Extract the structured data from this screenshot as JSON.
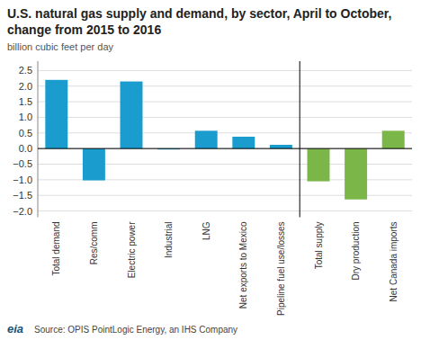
{
  "chart_data": {
    "type": "bar",
    "title": "U.S. natural gas supply and demand, by sector, April to October, change from 2015 to 2016",
    "subtitle": "billion cubic feet per day",
    "source": "Source: OPIS PointLogic Energy, an IHS Company",
    "annotations": [
      "eia"
    ],
    "categories": [
      "Total demand",
      "Res/comm",
      "Electric power",
      "Industrial",
      "LNG",
      "Net exports to Mexico",
      "Pipeline fuel use/losses",
      "Total supply",
      "Dry production",
      "Net Canada imports"
    ],
    "values": [
      2.2,
      -1.02,
      2.15,
      -0.03,
      0.57,
      0.38,
      0.12,
      -1.05,
      -1.63,
      0.57
    ],
    "colors": [
      "#1a9dce",
      "#1a9dce",
      "#1a9dce",
      "#1a9dce",
      "#1a9dce",
      "#1a9dce",
      "#1a9dce",
      "#7ab648",
      "#7ab648",
      "#7ab648"
    ],
    "ylim": [
      -2.2,
      2.8
    ],
    "yticks": [
      {
        "value": -2.0,
        "label": "−2.0"
      },
      {
        "value": -1.5,
        "label": "−1.5"
      },
      {
        "value": -1.0,
        "label": "−1.0"
      },
      {
        "value": -0.5,
        "label": "−0.5"
      },
      {
        "value": 0.0,
        "label": "0.0"
      },
      0.5,
      {
        "value": 1.0,
        "label": "1.0"
      },
      1.5,
      {
        "value": 2.0,
        "label": "2.0"
      },
      2.5
    ],
    "grid": true
  }
}
